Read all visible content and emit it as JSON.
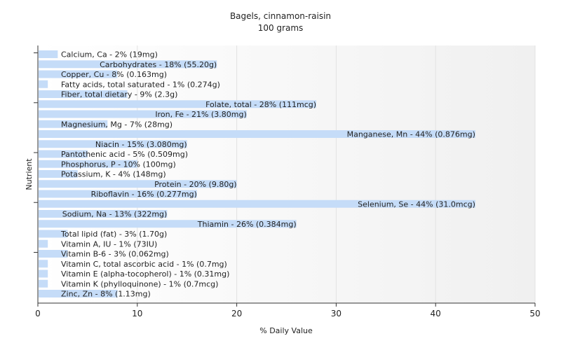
{
  "chart_data": {
    "type": "bar",
    "orientation": "horizontal",
    "title": "Bagels, cinnamon-raisin",
    "subtitle": "100 grams",
    "xlabel": "% Daily Value",
    "ylabel": "Nutrient",
    "xlim": [
      0,
      50
    ],
    "xticks": [
      0,
      10,
      20,
      30,
      40,
      50
    ],
    "grid": true,
    "bar_color": "#c5dcf8",
    "categories": [
      "Calcium, Ca",
      "Carbohydrates",
      "Copper, Cu",
      "Fatty acids, total saturated",
      "Fiber, total dietary",
      "Folate, total",
      "Iron, Fe",
      "Magnesium, Mg",
      "Manganese, Mn",
      "Niacin",
      "Pantothenic acid",
      "Phosphorus, P",
      "Potassium, K",
      "Protein",
      "Riboflavin",
      "Selenium, Se",
      "Sodium, Na",
      "Thiamin",
      "Total lipid (fat)",
      "Vitamin A, IU",
      "Vitamin B-6",
      "Vitamin C, total ascorbic acid",
      "Vitamin E (alpha-tocopherol)",
      "Vitamin K (phylloquinone)",
      "Zinc, Zn"
    ],
    "values": [
      2,
      18,
      8,
      1,
      9,
      28,
      21,
      7,
      44,
      15,
      5,
      10,
      4,
      20,
      16,
      44,
      13,
      26,
      3,
      1,
      3,
      1,
      1,
      1,
      8
    ],
    "labels": [
      "Calcium, Ca - 2% (19mg)",
      "Carbohydrates - 18% (55.20g)",
      "Copper, Cu - 8% (0.163mg)",
      "Fatty acids, total saturated - 1% (0.274g)",
      "Fiber, total dietary - 9% (2.3g)",
      "Folate, total - 28% (111mcg)",
      "Iron, Fe - 21% (3.80mg)",
      "Magnesium, Mg - 7% (28mg)",
      "Manganese, Mn - 44% (0.876mg)",
      "Niacin - 15% (3.080mg)",
      "Pantothenic acid - 5% (0.509mg)",
      "Phosphorus, P - 10% (100mg)",
      "Potassium, K - 4% (148mg)",
      "Protein - 20% (9.80g)",
      "Riboflavin - 16% (0.277mg)",
      "Selenium, Se - 44% (31.0mcg)",
      "Sodium, Na - 13% (322mg)",
      "Thiamin - 26% (0.384mg)",
      "Total lipid (fat) - 3% (1.70g)",
      "Vitamin A, IU - 1% (73IU)",
      "Vitamin B-6 - 3% (0.062mg)",
      "Vitamin C, total ascorbic acid - 1% (0.7mg)",
      "Vitamin E (alpha-tocopherol) - 1% (0.31mg)",
      "Vitamin K (phylloquinone) - 1% (0.7mcg)",
      "Zinc, Zn - 8% (1.13mg)"
    ]
  }
}
